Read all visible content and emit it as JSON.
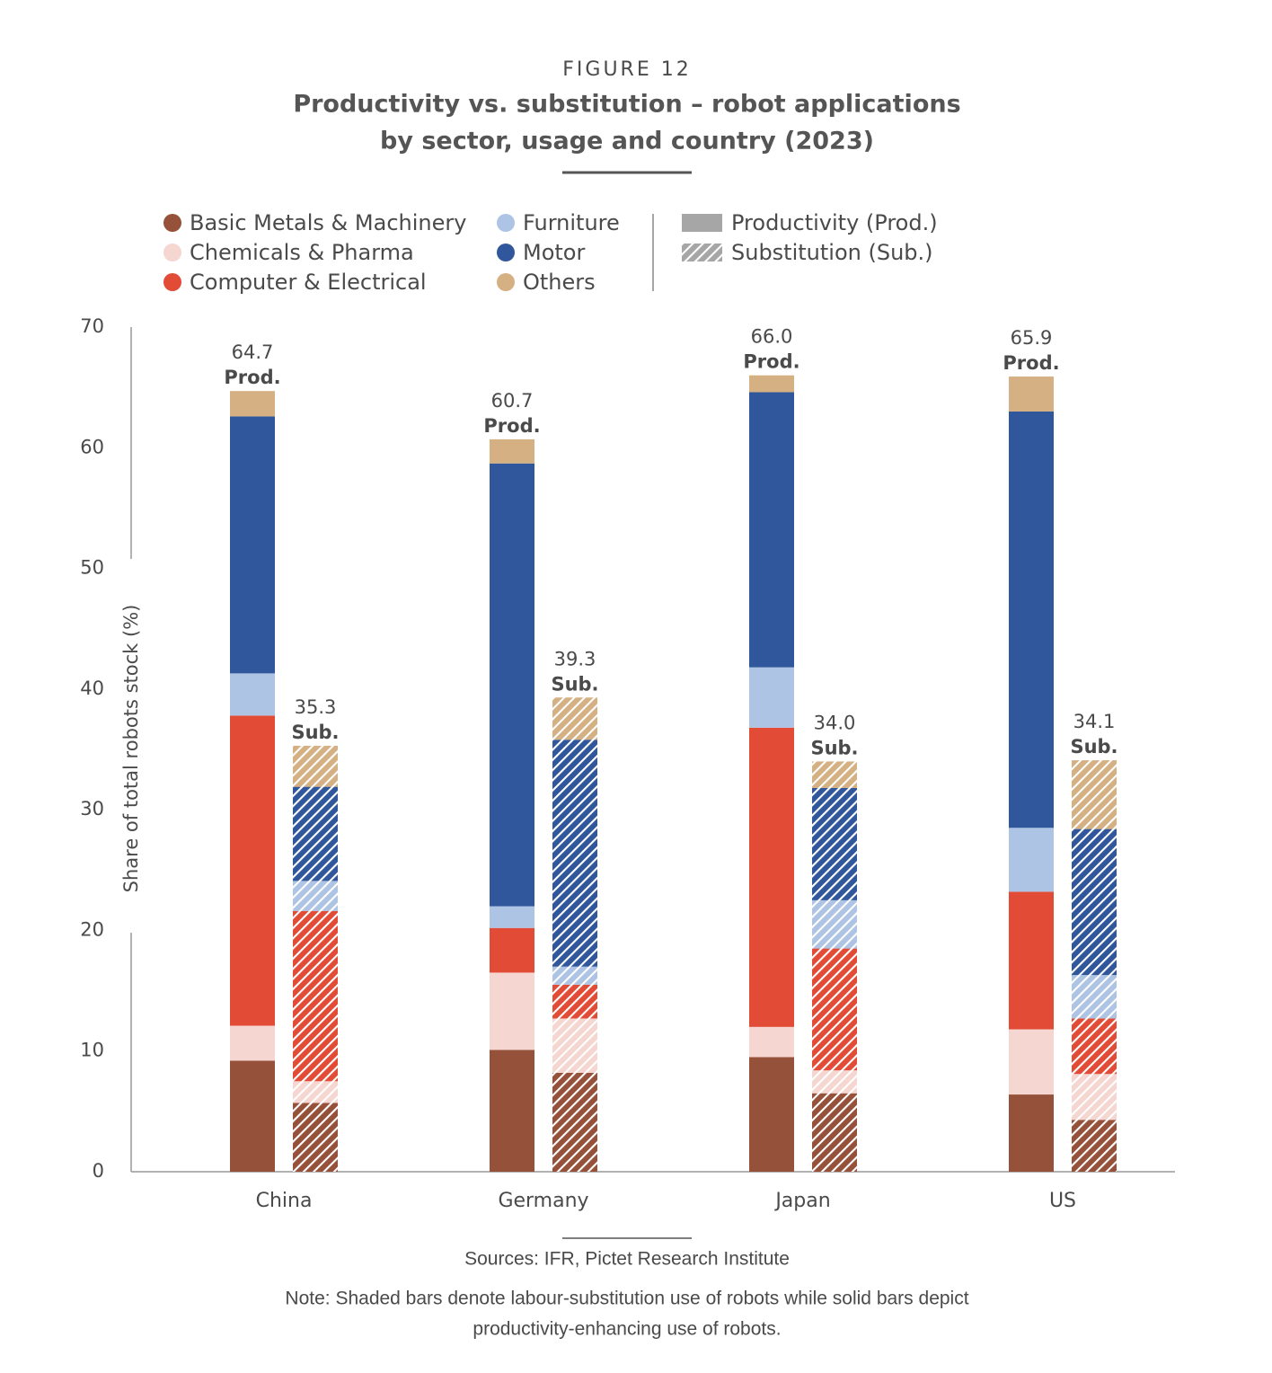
{
  "chart_data": {
    "type": "grouped_stacked_bar",
    "figure_label": "FIGURE 12",
    "title": [
      "Productivity vs. substitution – robot applications",
      "by sector, usage and country (2023)"
    ],
    "y_label": "Share of total robots stock (%)",
    "categories": [
      "China",
      "Germany",
      "Japan",
      "US"
    ],
    "ylim": [
      0,
      70
    ],
    "yticks": [
      0,
      10,
      20,
      30,
      40,
      50,
      60,
      70
    ],
    "usages": [
      {
        "name": "Productivity (Prod.)",
        "label": "Prod.",
        "hatched": false,
        "values": [
          64.7,
          60.7,
          66.0,
          65.9
        ],
        "value_labels": [
          "64.7",
          "60.7",
          "66.0",
          "65.9"
        ]
      },
      {
        "name": "Substitution (Sub.)",
        "label": "Sub.",
        "hatched": true,
        "values": [
          35.3,
          39.3,
          34.0,
          34.1
        ],
        "value_labels": [
          "35.3",
          "39.3",
          "34.0",
          "34.1"
        ]
      }
    ],
    "series": [
      {
        "name": "Basic Metals & Machinery",
        "color": "#96513b",
        "values": [
          [
            9.2,
            5.7
          ],
          [
            10.1,
            8.2
          ],
          [
            9.5,
            6.5
          ],
          [
            6.4,
            4.3
          ]
        ]
      },
      {
        "name": "Chemicals & Pharma",
        "color": "#f5d6d0",
        "values": [
          [
            2.9,
            1.8
          ],
          [
            6.4,
            4.5
          ],
          [
            2.5,
            1.9
          ],
          [
            5.4,
            3.8
          ]
        ]
      },
      {
        "name": "Computer & Electrical",
        "color": "#e24c37",
        "values": [
          [
            25.7,
            14.1
          ],
          [
            3.7,
            2.8
          ],
          [
            24.8,
            10.1
          ],
          [
            11.4,
            4.6
          ]
        ]
      },
      {
        "name": "Furniture",
        "color": "#aec4e4",
        "values": [
          [
            3.5,
            2.5
          ],
          [
            1.8,
            1.5
          ],
          [
            5.0,
            4.0
          ],
          [
            5.3,
            3.6
          ]
        ]
      },
      {
        "name": "Motor",
        "color": "#30579b",
        "values": [
          [
            21.3,
            7.8
          ],
          [
            36.7,
            18.8
          ],
          [
            22.8,
            9.3
          ],
          [
            34.5,
            12.1
          ]
        ]
      },
      {
        "name": "Others",
        "color": "#d4b083",
        "values": [
          [
            2.1,
            3.4
          ],
          [
            2.0,
            3.5
          ],
          [
            1.4,
            2.2
          ],
          [
            2.9,
            5.7
          ]
        ]
      }
    ],
    "sources": "Sources: IFR, Pictet Research Institute",
    "note": [
      "Note: Shaded bars denote labour-substitution use of robots while solid bars depict",
      "productivity-enhancing use of robots."
    ]
  }
}
